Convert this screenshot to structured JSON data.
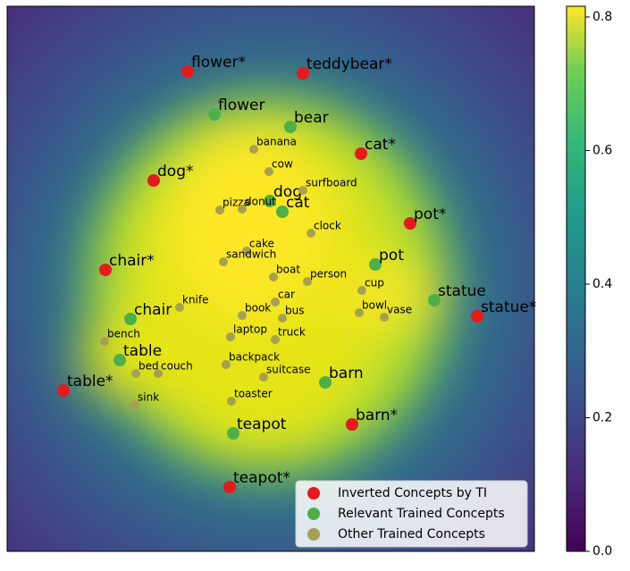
{
  "chart_data": {
    "type": "scatter",
    "xlim": [
      0,
      590
    ],
    "ylim": [
      0,
      610
    ],
    "series": [
      {
        "name": "Inverted Concepts by TI",
        "color": "#e41a1c",
        "size": "large",
        "labels": [
          "flower*",
          "teddybear*",
          "cat*",
          "dog*",
          "pot*",
          "chair*",
          "statue*",
          "table*",
          "barn*",
          "teapot*"
        ],
        "x": [
          202,
          331,
          396,
          164,
          451,
          110,
          526,
          63,
          386,
          249
        ],
        "y": [
          537,
          535,
          445,
          415,
          367,
          315,
          263,
          180,
          142,
          72
        ]
      },
      {
        "name": "Relevant Trained Concepts",
        "color": "#4daf4a",
        "size": "large",
        "labels": [
          "flower",
          "bear",
          "dog",
          "cat",
          "pot",
          "statue",
          "chair",
          "table",
          "barn",
          "teapot"
        ],
        "x": [
          232,
          317,
          294,
          308,
          412,
          478,
          138,
          126,
          356,
          253
        ],
        "y": [
          489,
          475,
          392,
          380,
          321,
          281,
          260,
          214,
          189,
          132
        ]
      },
      {
        "name": "Other Trained Concepts",
        "color": "#a6a052",
        "size": "small",
        "labels": [
          "banana",
          "cow",
          "surfboard",
          "pizza",
          "donut",
          "clock",
          "cake",
          "sandwich",
          "boat",
          "person",
          "knife",
          "cup",
          "car",
          "book",
          "bus",
          "bowl",
          "vase",
          "laptop",
          "truck",
          "bench",
          "backpack",
          "suitcase",
          "bed",
          "couch",
          "toaster",
          "sink"
        ],
        "x": [
          276,
          293,
          331,
          238,
          263,
          340,
          268,
          242,
          298,
          336,
          193,
          397,
          300,
          263,
          308,
          394,
          422,
          250,
          300,
          109,
          245,
          287,
          144,
          169,
          251,
          143
        ],
        "y": [
          450,
          425,
          404,
          382,
          383,
          356,
          336,
          324,
          307,
          302,
          273,
          292,
          279,
          264,
          261,
          267,
          262,
          240,
          237,
          235,
          209,
          195,
          199,
          199,
          168,
          164
        ]
      }
    ],
    "legend": "lower right",
    "colorbar": {
      "colormap": "viridis",
      "clim": [
        0,
        0.816
      ],
      "ticks": [
        {
          "value": 0,
          "label": "0.0"
        },
        {
          "value": 0.2,
          "label": "0.2"
        },
        {
          "value": 0.4,
          "label": "0.4"
        },
        {
          "value": 0.6,
          "label": "0.6"
        },
        {
          "value": 0.8,
          "label": "0.8"
        }
      ]
    }
  }
}
